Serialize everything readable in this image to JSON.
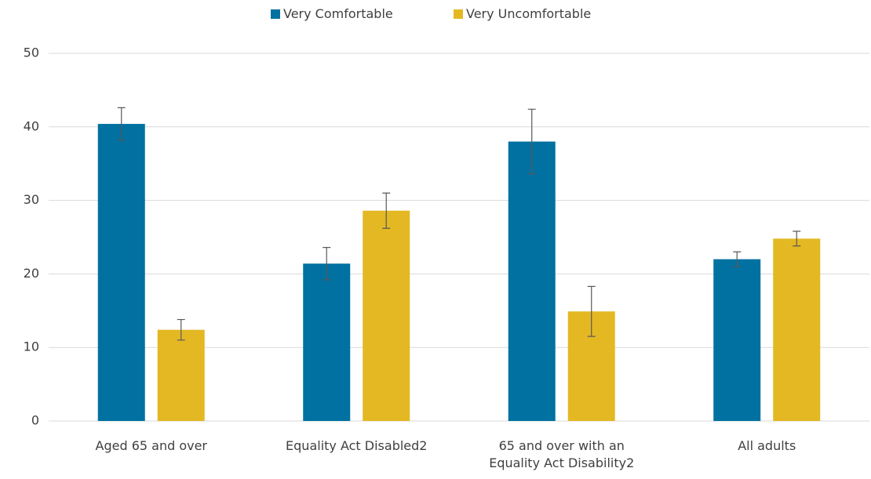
{
  "chart_data": {
    "type": "bar",
    "categories": [
      "Aged 65 and over",
      "Equality Act Disabled2",
      "65 and over with an Equality Act Disability2",
      "All adults"
    ],
    "series": [
      {
        "name": "Very Comfortable",
        "color": "#0071a1",
        "values": [
          40.4,
          21.4,
          38.0,
          22.0
        ],
        "errors": [
          2.2,
          2.2,
          4.4,
          1.0
        ]
      },
      {
        "name": "Very Uncomfortable",
        "color": "#e3b823",
        "values": [
          12.4,
          28.6,
          14.9,
          24.8
        ],
        "errors": [
          1.4,
          2.4,
          3.4,
          1.0
        ]
      }
    ],
    "ylim": [
      0,
      50
    ],
    "yticks": [
      0,
      10,
      20,
      30,
      40,
      50
    ],
    "grid": true,
    "legend": "top"
  }
}
